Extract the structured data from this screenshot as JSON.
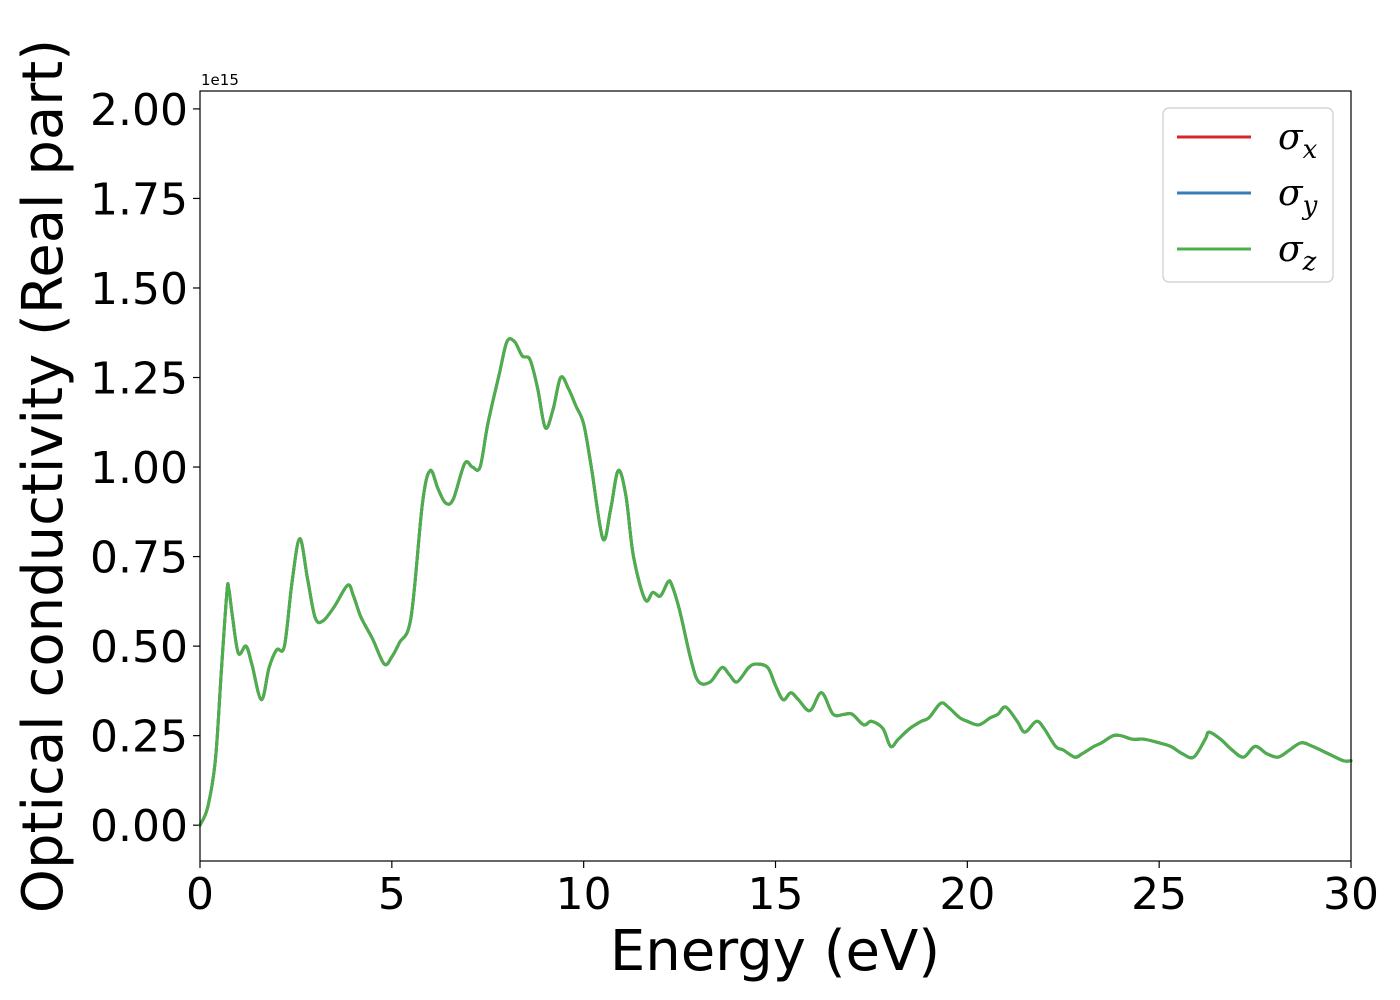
{
  "chart_data": {
    "type": "line",
    "title": "",
    "xlabel": "Energy (eV)",
    "ylabel": "Optical conductivity (Real part)",
    "y_offset_label": "1e15",
    "xlim": [
      0,
      30
    ],
    "ylim": [
      -0.1,
      2.05
    ],
    "x_ticks": [
      0,
      5,
      10,
      15,
      20,
      25,
      30
    ],
    "x_tick_labels": [
      "0",
      "5",
      "10",
      "15",
      "20",
      "25",
      "30"
    ],
    "y_ticks": [
      0.0,
      0.25,
      0.5,
      0.75,
      1.0,
      1.25,
      1.5,
      1.75,
      2.0
    ],
    "y_tick_labels": [
      "0.00",
      "0.25",
      "0.50",
      "0.75",
      "1.00",
      "1.25",
      "1.50",
      "1.75",
      "2.00"
    ],
    "grid": false,
    "legend_position": "top-right",
    "x": [
      0,
      0.2,
      0.4,
      0.55,
      0.7,
      0.75,
      0.85,
      1.0,
      1.2,
      1.35,
      1.6,
      1.8,
      2.0,
      2.2,
      2.4,
      2.6,
      2.8,
      3.0,
      3.2,
      3.5,
      3.85,
      4.0,
      4.2,
      4.5,
      4.8,
      5.0,
      5.2,
      5.5,
      5.8,
      6.0,
      6.2,
      6.4,
      6.6,
      6.9,
      7.1,
      7.3,
      7.5,
      7.8,
      8.0,
      8.2,
      8.4,
      8.6,
      8.8,
      9.0,
      9.2,
      9.4,
      9.6,
      9.8,
      10.0,
      10.2,
      10.5,
      10.7,
      10.9,
      11.1,
      11.3,
      11.6,
      11.8,
      12.0,
      12.2,
      12.3,
      12.5,
      12.8,
      13.0,
      13.3,
      13.6,
      13.8,
      14.0,
      14.3,
      14.5,
      14.8,
      15.0,
      15.2,
      15.4,
      15.6,
      15.9,
      16.2,
      16.5,
      16.8,
      17.0,
      17.3,
      17.5,
      17.8,
      18.0,
      18.2,
      18.5,
      18.8,
      19.0,
      19.3,
      19.5,
      19.8,
      20.0,
      20.3,
      20.6,
      20.8,
      21.0,
      21.3,
      21.5,
      21.8,
      22.0,
      22.3,
      22.5,
      22.8,
      23.0,
      23.3,
      23.5,
      23.8,
      24.0,
      24.3,
      24.6,
      25.0,
      25.3,
      25.6,
      25.9,
      26.2,
      26.3,
      26.6,
      26.9,
      27.2,
      27.5,
      27.8,
      28.1,
      28.4,
      28.7,
      29.0,
      29.4,
      29.8,
      30.0
    ],
    "series": [
      {
        "name": "σx",
        "name_base": "σ",
        "name_sub": "x",
        "color": "#d62728",
        "values": [
          0.0,
          0.05,
          0.18,
          0.42,
          0.65,
          0.66,
          0.58,
          0.48,
          0.5,
          0.45,
          0.35,
          0.44,
          0.49,
          0.5,
          0.68,
          0.8,
          0.69,
          0.58,
          0.57,
          0.61,
          0.67,
          0.64,
          0.58,
          0.52,
          0.45,
          0.47,
          0.51,
          0.58,
          0.9,
          0.99,
          0.94,
          0.9,
          0.91,
          1.01,
          1.0,
          1.0,
          1.12,
          1.26,
          1.35,
          1.35,
          1.31,
          1.3,
          1.22,
          1.11,
          1.16,
          1.25,
          1.22,
          1.17,
          1.12,
          1.0,
          0.8,
          0.88,
          0.99,
          0.92,
          0.75,
          0.63,
          0.65,
          0.64,
          0.68,
          0.67,
          0.6,
          0.46,
          0.4,
          0.4,
          0.44,
          0.42,
          0.4,
          0.44,
          0.45,
          0.44,
          0.39,
          0.35,
          0.37,
          0.35,
          0.32,
          0.37,
          0.31,
          0.31,
          0.31,
          0.28,
          0.29,
          0.27,
          0.22,
          0.24,
          0.27,
          0.29,
          0.3,
          0.34,
          0.33,
          0.3,
          0.29,
          0.28,
          0.3,
          0.31,
          0.33,
          0.29,
          0.26,
          0.29,
          0.27,
          0.22,
          0.21,
          0.19,
          0.2,
          0.22,
          0.23,
          0.25,
          0.25,
          0.24,
          0.24,
          0.23,
          0.22,
          0.2,
          0.19,
          0.24,
          0.26,
          0.24,
          0.21,
          0.19,
          0.22,
          0.2,
          0.19,
          0.21,
          0.23,
          0.22,
          0.2,
          0.18,
          0.18
        ]
      },
      {
        "name": "σy",
        "name_base": "σ",
        "name_sub": "y",
        "color": "#377eb8",
        "values": [
          0.0,
          0.05,
          0.18,
          0.42,
          0.65,
          0.66,
          0.58,
          0.48,
          0.5,
          0.45,
          0.35,
          0.44,
          0.49,
          0.5,
          0.68,
          0.8,
          0.69,
          0.58,
          0.57,
          0.61,
          0.67,
          0.64,
          0.58,
          0.52,
          0.45,
          0.47,
          0.51,
          0.58,
          0.9,
          0.99,
          0.94,
          0.9,
          0.91,
          1.01,
          1.0,
          1.0,
          1.12,
          1.26,
          1.35,
          1.35,
          1.31,
          1.3,
          1.22,
          1.11,
          1.16,
          1.25,
          1.22,
          1.17,
          1.12,
          1.0,
          0.8,
          0.88,
          0.99,
          0.92,
          0.75,
          0.63,
          0.65,
          0.64,
          0.68,
          0.67,
          0.6,
          0.46,
          0.4,
          0.4,
          0.44,
          0.42,
          0.4,
          0.44,
          0.45,
          0.44,
          0.39,
          0.35,
          0.37,
          0.35,
          0.32,
          0.37,
          0.31,
          0.31,
          0.31,
          0.28,
          0.29,
          0.27,
          0.22,
          0.24,
          0.27,
          0.29,
          0.3,
          0.34,
          0.33,
          0.3,
          0.29,
          0.28,
          0.3,
          0.31,
          0.33,
          0.29,
          0.26,
          0.29,
          0.27,
          0.22,
          0.21,
          0.19,
          0.2,
          0.22,
          0.23,
          0.25,
          0.25,
          0.24,
          0.24,
          0.23,
          0.22,
          0.2,
          0.19,
          0.24,
          0.26,
          0.24,
          0.21,
          0.19,
          0.22,
          0.2,
          0.19,
          0.21,
          0.23,
          0.22,
          0.2,
          0.18,
          0.18
        ]
      },
      {
        "name": "σz",
        "name_base": "σ",
        "name_sub": "z",
        "color": "#4daf4a",
        "values": [
          0.0,
          0.05,
          0.18,
          0.42,
          0.65,
          0.66,
          0.58,
          0.48,
          0.5,
          0.45,
          0.35,
          0.44,
          0.49,
          0.5,
          0.68,
          0.8,
          0.69,
          0.58,
          0.57,
          0.61,
          0.67,
          0.64,
          0.58,
          0.52,
          0.45,
          0.47,
          0.51,
          0.58,
          0.9,
          0.99,
          0.94,
          0.9,
          0.91,
          1.01,
          1.0,
          1.0,
          1.12,
          1.26,
          1.35,
          1.35,
          1.31,
          1.3,
          1.22,
          1.11,
          1.16,
          1.25,
          1.22,
          1.17,
          1.12,
          1.0,
          0.8,
          0.88,
          0.99,
          0.92,
          0.75,
          0.63,
          0.65,
          0.64,
          0.68,
          0.67,
          0.6,
          0.46,
          0.4,
          0.4,
          0.44,
          0.42,
          0.4,
          0.44,
          0.45,
          0.44,
          0.39,
          0.35,
          0.37,
          0.35,
          0.32,
          0.37,
          0.31,
          0.31,
          0.31,
          0.28,
          0.29,
          0.27,
          0.22,
          0.24,
          0.27,
          0.29,
          0.3,
          0.34,
          0.33,
          0.3,
          0.29,
          0.28,
          0.3,
          0.31,
          0.33,
          0.29,
          0.26,
          0.29,
          0.27,
          0.22,
          0.21,
          0.19,
          0.2,
          0.22,
          0.23,
          0.25,
          0.25,
          0.24,
          0.24,
          0.23,
          0.22,
          0.2,
          0.19,
          0.24,
          0.26,
          0.24,
          0.21,
          0.19,
          0.22,
          0.2,
          0.19,
          0.21,
          0.23,
          0.22,
          0.2,
          0.18,
          0.18
        ]
      }
    ]
  }
}
